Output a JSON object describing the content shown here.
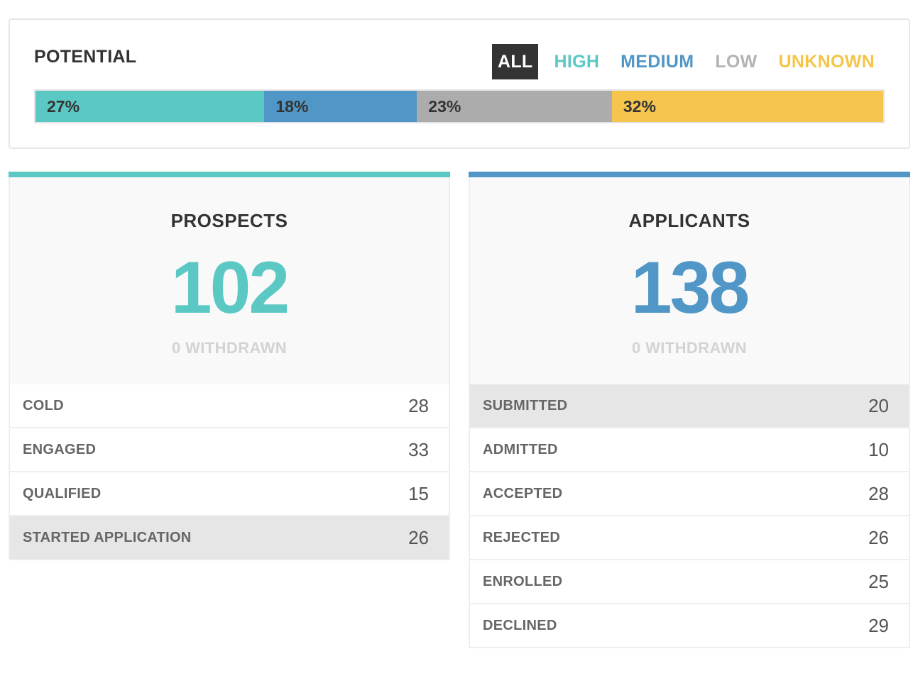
{
  "potential": {
    "title": "POTENTIAL",
    "filters": [
      {
        "label": "ALL",
        "color": "#ffffff",
        "active": true
      },
      {
        "label": "HIGH",
        "color": "#5bc8c4",
        "active": false
      },
      {
        "label": "MEDIUM",
        "color": "#5096c6",
        "active": false
      },
      {
        "label": "LOW",
        "color": "#b3b3b3",
        "active": false
      },
      {
        "label": "UNKNOWN",
        "color": "#f5c54a",
        "active": false
      }
    ],
    "segments": [
      {
        "label": "27%",
        "value": 27,
        "color": "#5bc8c4"
      },
      {
        "label": "18%",
        "value": 18,
        "color": "#5096c6"
      },
      {
        "label": "23%",
        "value": 23,
        "color": "#acacac"
      },
      {
        "label": "32%",
        "value": 32,
        "color": "#f6c54d"
      }
    ]
  },
  "prospects": {
    "title": "PROSPECTS",
    "count": "102",
    "withdrawn": "0 WITHDRAWN",
    "accent": "#5bc8c4",
    "rows": [
      {
        "label": "COLD",
        "value": "28",
        "highlight": false
      },
      {
        "label": "ENGAGED",
        "value": "33",
        "highlight": false
      },
      {
        "label": "QUALIFIED",
        "value": "15",
        "highlight": false
      },
      {
        "label": "STARTED APPLICATION",
        "value": "26",
        "highlight": true
      }
    ]
  },
  "applicants": {
    "title": "APPLICANTS",
    "count": "138",
    "withdrawn": "0 WITHDRAWN",
    "accent": "#5096c6",
    "rows": [
      {
        "label": "SUBMITTED",
        "value": "20",
        "highlight": true
      },
      {
        "label": "ADMITTED",
        "value": "10",
        "highlight": false
      },
      {
        "label": "ACCEPTED",
        "value": "28",
        "highlight": false
      },
      {
        "label": "REJECTED",
        "value": "26",
        "highlight": false
      },
      {
        "label": "ENROLLED",
        "value": "25",
        "highlight": false
      },
      {
        "label": "DECLINED",
        "value": "29",
        "highlight": false
      }
    ]
  }
}
